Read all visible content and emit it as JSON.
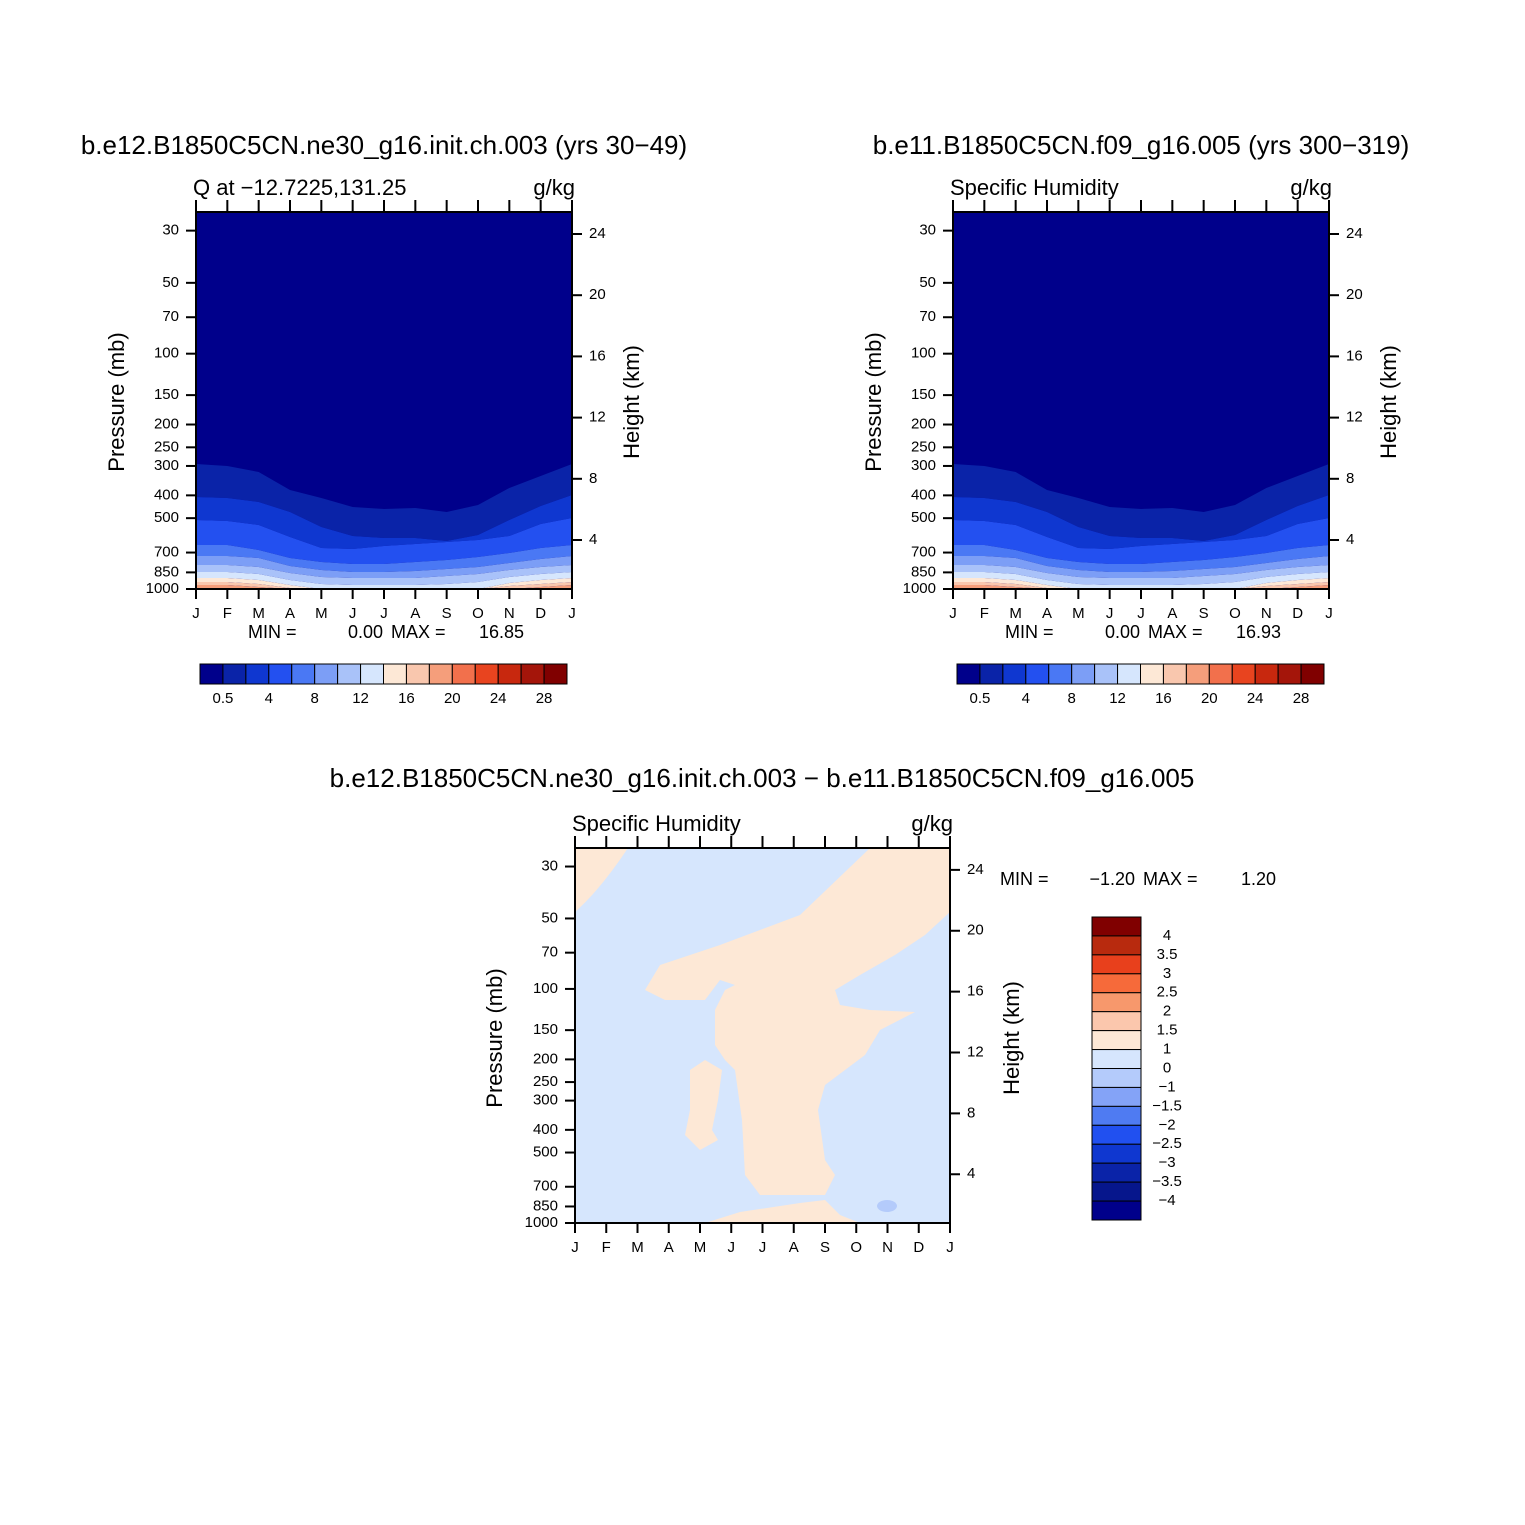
{
  "panels": [
    {
      "title": "b.e12.B1850C5CN.ne30_g16.init.ch.003 (yrs 30−49)",
      "left_label": "Q at −12.7225,131.25",
      "right_label": "g/kg",
      "y_label": "Pressure (mb)",
      "y2_label": "Height (km)",
      "pressure_ticks": [
        30,
        50,
        70,
        100,
        150,
        200,
        250,
        300,
        400,
        500,
        700,
        850,
        1000
      ],
      "height_ticks": [
        4,
        8,
        12,
        16,
        20,
        24
      ],
      "months": [
        "J",
        "F",
        "M",
        "A",
        "M",
        "J",
        "J",
        "A",
        "S",
        "O",
        "N",
        "D",
        "J"
      ],
      "stats": {
        "min_label": "MIN =",
        "min": "0.00",
        "max_label": "MAX =",
        "max": "16.85"
      },
      "colorbar": {
        "colors": [
          "#00008b",
          "#0a23a8",
          "#0f37d0",
          "#2350f0",
          "#4a78f4",
          "#7c9ef6",
          "#a9c2f9",
          "#d6e6fd",
          "#fde8d6",
          "#f9c7ae",
          "#f59e7b",
          "#f2704c",
          "#e8441f",
          "#c8280e",
          "#a4150a",
          "#800000"
        ],
        "labels": [
          "0.5",
          "4",
          "8",
          "12",
          "16",
          "20",
          "24",
          "28"
        ]
      }
    },
    {
      "title": "b.e11.B1850C5CN.f09_g16.005 (yrs 300−319)",
      "left_label": "Specific Humidity",
      "right_label": "g/kg",
      "y_label": "Pressure (mb)",
      "y2_label": "Height (km)",
      "pressure_ticks": [
        30,
        50,
        70,
        100,
        150,
        200,
        250,
        300,
        400,
        500,
        700,
        850,
        1000
      ],
      "height_ticks": [
        4,
        8,
        12,
        16,
        20,
        24
      ],
      "months": [
        "J",
        "F",
        "M",
        "A",
        "M",
        "J",
        "J",
        "A",
        "S",
        "O",
        "N",
        "D",
        "J"
      ],
      "stats": {
        "min_label": "MIN =",
        "min": "0.00",
        "max_label": "MAX =",
        "max": "16.93"
      },
      "colorbar": {
        "colors": [
          "#00008b",
          "#0a23a8",
          "#0f37d0",
          "#2350f0",
          "#4a78f4",
          "#7c9ef6",
          "#a9c2f9",
          "#d6e6fd",
          "#fde8d6",
          "#f9c7ae",
          "#f59e7b",
          "#f2704c",
          "#e8441f",
          "#c8280e",
          "#a4150a",
          "#800000"
        ],
        "labels": [
          "0.5",
          "4",
          "8",
          "12",
          "16",
          "20",
          "24",
          "28"
        ]
      }
    },
    {
      "title": "b.e12.B1850C5CN.ne30_g16.init.ch.003 − b.e11.B1850C5CN.f09_g16.005",
      "left_label": "Specific Humidity",
      "right_label": "g/kg",
      "y_label": "Pressure (mb)",
      "y2_label": "Height (km)",
      "pressure_ticks": [
        30,
        50,
        70,
        100,
        150,
        200,
        250,
        300,
        400,
        500,
        700,
        850,
        1000
      ],
      "height_ticks": [
        4,
        8,
        12,
        16,
        20,
        24
      ],
      "months": [
        "J",
        "F",
        "M",
        "A",
        "M",
        "J",
        "J",
        "A",
        "S",
        "O",
        "N",
        "D",
        "J"
      ],
      "stats": {
        "min_label": "MIN =",
        "min": "−1.20",
        "max_label": "MAX =",
        "max": "1.20"
      },
      "colorbar": {
        "colors": [
          "#800000",
          "#b82a0e",
          "#e8401c",
          "#f66a3a",
          "#f7986c",
          "#fbc7ad",
          "#fde8d6",
          "#d6e6fd",
          "#b4cbfb",
          "#84a3f7",
          "#4f7bf2",
          "#2150f0",
          "#0f37d0",
          "#0a23a8",
          "#06168c",
          "#00008b"
        ],
        "labels": [
          "4",
          "3.5",
          "3",
          "2.5",
          "2",
          "1.5",
          "1",
          "0",
          "−1",
          "−1.5",
          "−2",
          "−2.5",
          "−3",
          "−3.5",
          "−4"
        ]
      }
    }
  ]
}
